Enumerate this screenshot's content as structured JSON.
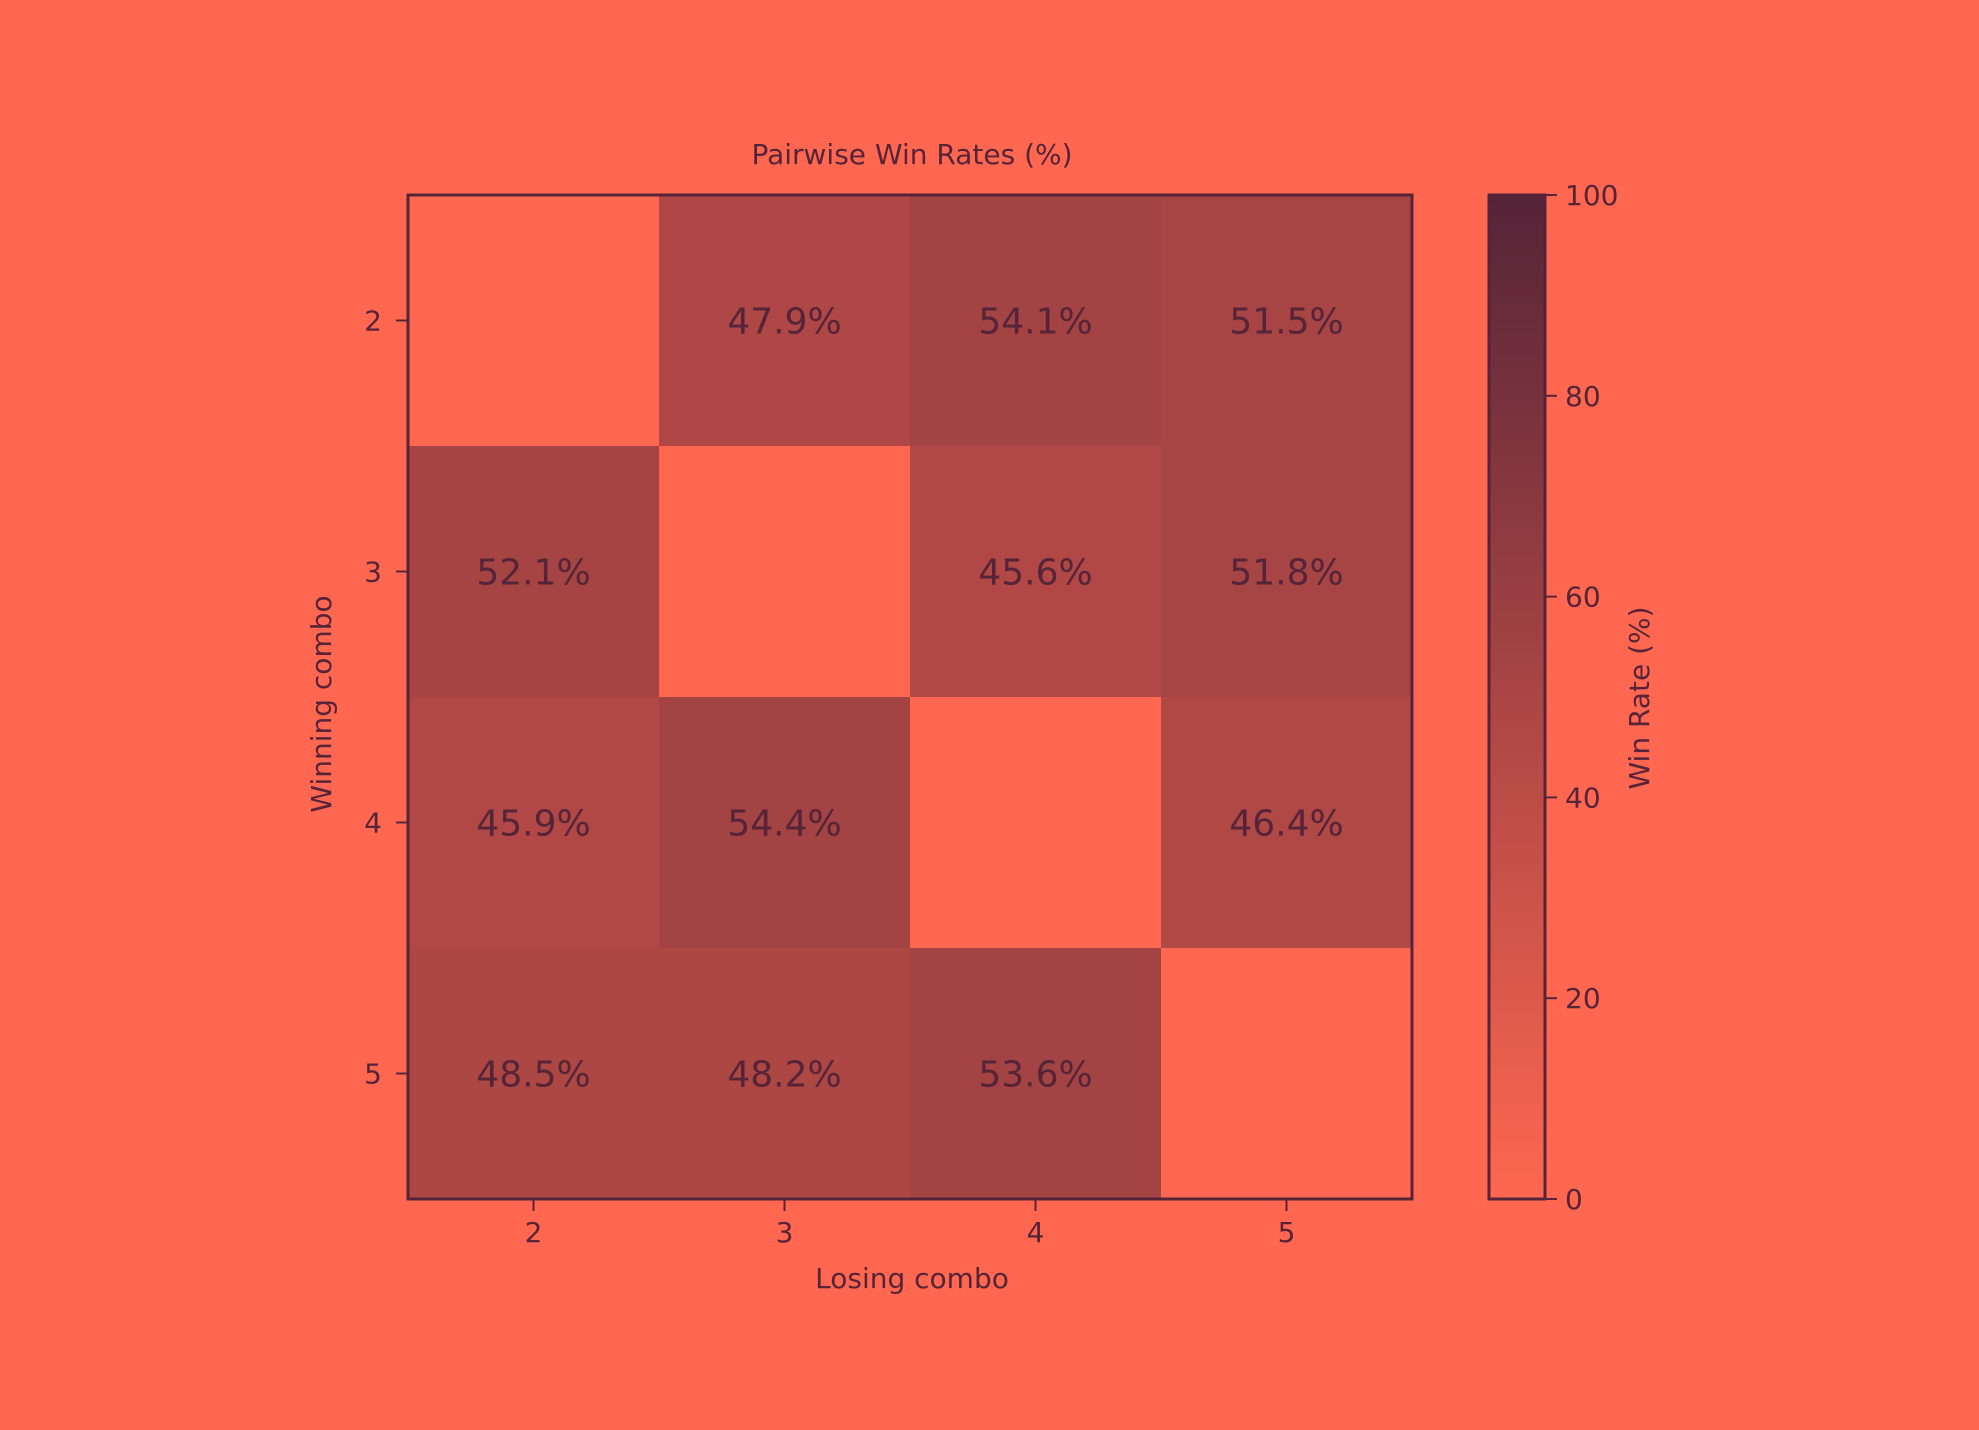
{
  "chart_data": {
    "type": "heatmap",
    "title": "Pairwise Win Rates (%)",
    "xlabel": "Losing combo",
    "ylabel": "Winning combo",
    "x_categories": [
      "2",
      "3",
      "4",
      "5"
    ],
    "y_categories": [
      "2",
      "3",
      "4",
      "5"
    ],
    "values": [
      [
        null,
        47.9,
        54.1,
        51.5
      ],
      [
        52.1,
        null,
        45.6,
        51.8
      ],
      [
        45.9,
        54.4,
        null,
        46.4
      ],
      [
        48.5,
        48.2,
        53.6,
        null
      ]
    ],
    "cell_labels": [
      [
        "",
        "47.9%",
        "54.1%",
        "51.5%"
      ],
      [
        "52.1%",
        "",
        "45.6%",
        "51.8%"
      ],
      [
        "45.9%",
        "54.4%",
        "",
        "46.4%"
      ],
      [
        "48.5%",
        "48.2%",
        "53.6%",
        ""
      ]
    ],
    "colorbar": {
      "label": "Win Rate (%)",
      "range": [
        0,
        100
      ],
      "ticks": [
        "0",
        "20",
        "40",
        "60",
        "80",
        "100"
      ],
      "color_low": "#FF6750",
      "color_high": "#552438"
    },
    "colors": {
      "background": "#FF6750",
      "ink": "#552438"
    }
  }
}
